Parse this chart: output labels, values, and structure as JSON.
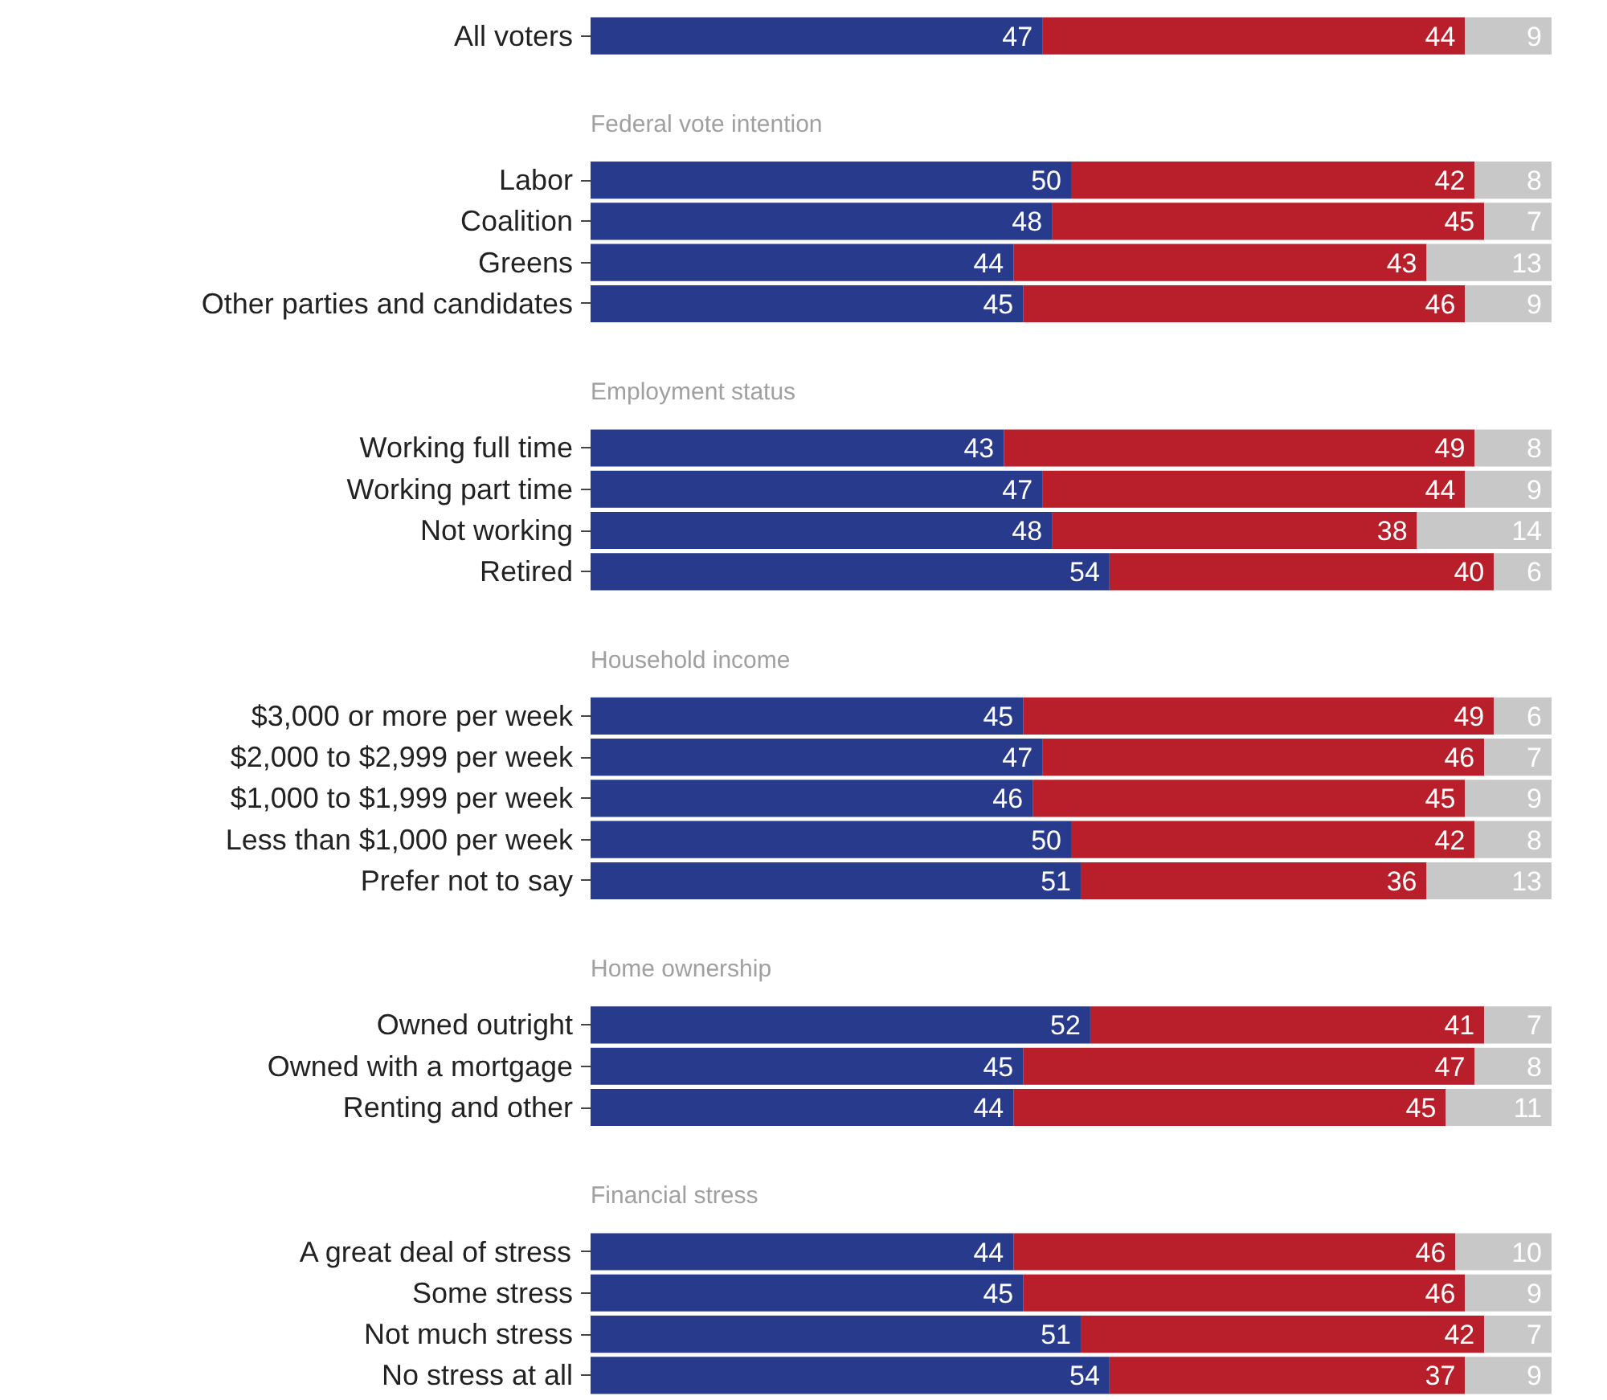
{
  "chart_data": {
    "type": "bar",
    "orientation": "horizontal",
    "stacked": true,
    "data_labels": true,
    "tick_labels": "y",
    "grid": false,
    "xlim": [
      0,
      100
    ],
    "categories": [
      "All voters",
      null,
      "Labor",
      "Coalition",
      "Greens",
      "Other parties and candidates",
      null,
      "Working full time",
      "Working part time",
      "Not working",
      "Retired",
      null,
      "$3,000 or more per week",
      "$2,000 to $2,999 per week",
      "$1,000 to $1,999 per week",
      "Less than $1,000 per week",
      "Prefer not to say",
      null,
      "Owned outright",
      "Owned with a mortgage",
      "Renting and other",
      null,
      "A great deal of stress",
      "Some stress",
      "Not much stress",
      "No stress at all"
    ],
    "annotations": [
      "Federal vote intention",
      "Employment status",
      "Household income",
      "Home ownership",
      "Financial stress"
    ],
    "series": [
      {
        "color": "#283a8c",
        "values": [
          47,
          null,
          50,
          48,
          44,
          45,
          null,
          43,
          47,
          48,
          54,
          null,
          45,
          47,
          46,
          50,
          51,
          null,
          52,
          45,
          44,
          null,
          44,
          45,
          51,
          54
        ]
      },
      {
        "color": "#b81f2a",
        "values": [
          44,
          null,
          42,
          45,
          43,
          46,
          null,
          49,
          44,
          38,
          40,
          null,
          49,
          46,
          45,
          42,
          36,
          null,
          41,
          47,
          45,
          null,
          46,
          46,
          42,
          37
        ]
      },
      {
        "color": "#c8c8c8",
        "values": [
          9,
          null,
          8,
          7,
          13,
          9,
          null,
          8,
          9,
          14,
          6,
          null,
          6,
          7,
          9,
          8,
          13,
          null,
          7,
          8,
          11,
          null,
          10,
          9,
          7,
          9
        ]
      }
    ]
  }
}
